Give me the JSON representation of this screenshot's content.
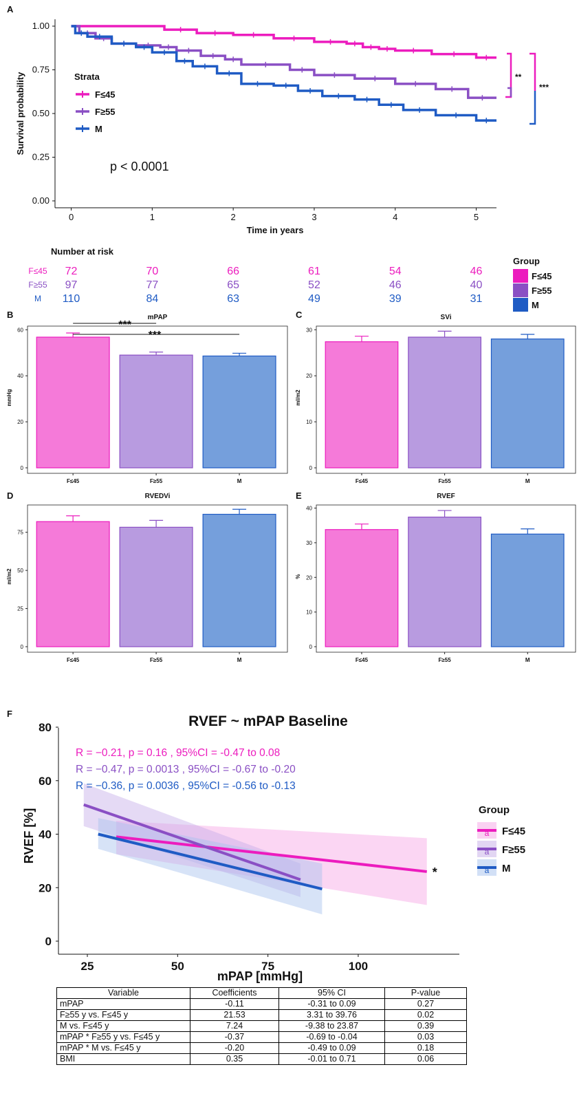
{
  "colors": {
    "f45": "#ec1cbe",
    "f55": "#8a4fc4",
    "m": "#1f5bc4",
    "f45_fill": "#f57ad9",
    "f55_fill": "#b89be0",
    "m_fill": "#759fdc",
    "f45_ci": "#f6a4e5",
    "f55_ci": "#c6aee8",
    "m_ci": "#a6c2ee"
  },
  "panel_letters": {
    "a": "A",
    "b": "B",
    "c": "C",
    "d": "D",
    "e": "E",
    "f": "F"
  },
  "chart_data": [
    {
      "id": "A",
      "type": "line",
      "subtype": "kaplan-meier step",
      "xlabel": "Time in years",
      "ylabel": "Survival probability",
      "xlim": [
        -0.2,
        5.25
      ],
      "ylim": [
        0,
        1.0
      ],
      "xticks": [
        "0",
        "1",
        "2",
        "3",
        "4",
        "5"
      ],
      "yticks": [
        "0.00",
        "0.25",
        "0.50",
        "0.75",
        "1.00"
      ],
      "legend_title": "Strata",
      "legend_position": "left-center",
      "pvalue_text": "p < 0.0001",
      "significance": [
        "**",
        "***"
      ],
      "series": [
        {
          "name": "F≤45",
          "color_key": "f45",
          "x": [
            0,
            1.15,
            1.55,
            2.0,
            2.5,
            3.0,
            3.4,
            3.6,
            3.8,
            4.0,
            4.45,
            5.0,
            5.25
          ],
          "y": [
            1.0,
            0.98,
            0.96,
            0.95,
            0.93,
            0.91,
            0.9,
            0.88,
            0.87,
            0.86,
            0.84,
            0.82,
            0.82
          ]
        },
        {
          "name": "F≥55",
          "color_key": "f55",
          "x": [
            0,
            0.1,
            0.3,
            0.5,
            0.8,
            1.1,
            1.3,
            1.6,
            1.9,
            2.1,
            2.7,
            3.0,
            3.5,
            4.0,
            4.5,
            4.9,
            5.25
          ],
          "y": [
            1.0,
            0.96,
            0.93,
            0.9,
            0.89,
            0.88,
            0.86,
            0.83,
            0.81,
            0.78,
            0.75,
            0.72,
            0.7,
            0.67,
            0.64,
            0.59,
            0.59
          ]
        },
        {
          "name": "M",
          "color_key": "m",
          "x": [
            0,
            0.05,
            0.2,
            0.5,
            0.8,
            1.0,
            1.3,
            1.5,
            1.8,
            2.1,
            2.5,
            2.8,
            3.1,
            3.5,
            3.8,
            4.1,
            4.5,
            5.0,
            5.25
          ],
          "y": [
            1.0,
            0.96,
            0.94,
            0.9,
            0.88,
            0.85,
            0.8,
            0.77,
            0.73,
            0.67,
            0.66,
            0.63,
            0.6,
            0.58,
            0.55,
            0.52,
            0.49,
            0.46,
            0.46
          ]
        }
      ],
      "risk_table": {
        "title": "Number at risk",
        "rows": [
          {
            "label": "F≤45",
            "color_key": "f45",
            "values": [
              72,
              70,
              66,
              61,
              54,
              46
            ]
          },
          {
            "label": "F≥55",
            "color_key": "f55",
            "values": [
              97,
              77,
              65,
              52,
              46,
              40
            ]
          },
          {
            "label": "M",
            "color_key": "m",
            "values": [
              110,
              84,
              63,
              49,
              39,
              31
            ]
          }
        ]
      },
      "group_legend": {
        "title": "Group",
        "items": [
          "F≤45",
          "F≥55",
          "M"
        ]
      }
    },
    {
      "id": "B",
      "type": "bar",
      "title": "mPAP",
      "ylabel": "mmHg",
      "categories": [
        "F≤45",
        "F≥55",
        "M"
      ],
      "values": [
        56.8,
        49.0,
        48.6
      ],
      "errors": [
        1.8,
        1.3,
        1.2
      ],
      "ylim": [
        0,
        61
      ],
      "yticks": [
        0,
        20,
        40,
        60
      ],
      "significance": [
        "***",
        "***"
      ]
    },
    {
      "id": "C",
      "type": "bar",
      "title": "SVi",
      "ylabel": "ml/m2",
      "categories": [
        "F≤45",
        "F≥55",
        "M"
      ],
      "values": [
        27.4,
        28.4,
        28.0
      ],
      "errors": [
        1.2,
        1.3,
        1.0
      ],
      "ylim": [
        0,
        30.5
      ],
      "yticks": [
        0,
        10,
        20,
        30
      ]
    },
    {
      "id": "D",
      "type": "bar",
      "title": "RVEDVi",
      "ylabel": "ml/m2",
      "categories": [
        "F≤45",
        "F≥55",
        "M"
      ],
      "values": [
        82.0,
        78.3,
        86.8
      ],
      "errors": [
        3.8,
        4.5,
        3.3
      ],
      "ylim": [
        0,
        92
      ],
      "yticks": [
        0,
        25,
        50,
        75
      ]
    },
    {
      "id": "E",
      "type": "bar",
      "title": "RVEF",
      "ylabel": "%",
      "categories": [
        "F≤45",
        "F≥55",
        "M"
      ],
      "values": [
        33.8,
        37.4,
        32.5
      ],
      "errors": [
        1.6,
        1.9,
        1.5
      ],
      "ylim": [
        0,
        40.5
      ],
      "yticks": [
        0,
        10,
        20,
        30,
        40
      ]
    },
    {
      "id": "F",
      "type": "line",
      "subtype": "regression with 95% CI band",
      "title": "RVEF ~ mPAP Baseline",
      "xlabel": "mPAP [mmHg]",
      "ylabel": "RVEF [%]",
      "xlim": [
        17,
        128
      ],
      "ylim": [
        -3,
        83
      ],
      "xticks": [
        25,
        50,
        75,
        100
      ],
      "yticks": [
        0,
        20,
        40,
        60,
        80
      ],
      "legend_title": "Group",
      "legend_position": "right",
      "annotations": [
        {
          "text": "R = −0.21, p = 0.16 , 95%CI = -0.47 to 0.08",
          "color_key": "f45"
        },
        {
          "text": "R = −0.47, p = 0.0013 , 95%CI = -0.67 to -0.20",
          "color_key": "f55"
        },
        {
          "text": "R = −0.36, p = 0.0036 , 95%CI = -0.56 to -0.13",
          "color_key": "m"
        }
      ],
      "marker_text": "*",
      "series": [
        {
          "name": "F≤45",
          "color_key": "f45",
          "x": [
            33,
            119
          ],
          "y": [
            39,
            26
          ],
          "ci_upper": [
            45,
            38.5
          ],
          "ci_lower": [
            32.5,
            13.5
          ]
        },
        {
          "name": "F≥55",
          "color_key": "f55",
          "x": [
            24,
            84
          ],
          "y": [
            51,
            23
          ],
          "ci_upper": [
            59,
            29
          ],
          "ci_lower": [
            43,
            16.5
          ]
        },
        {
          "name": "M",
          "color_key": "m",
          "x": [
            28,
            90
          ],
          "y": [
            40,
            19.5
          ],
          "ci_upper": [
            46,
            29
          ],
          "ci_lower": [
            34.5,
            10
          ]
        }
      ]
    }
  ],
  "table": {
    "headers": [
      "Variable",
      "Coefficients",
      "95% CI",
      "P-value"
    ],
    "rows": [
      [
        "mPAP",
        "-0.11",
        "-0.31 to 0.09",
        "0.27"
      ],
      [
        "F≥55 y vs. F≤45 y",
        "21.53",
        "3.31 to 39.76",
        "0.02"
      ],
      [
        "M vs. F≤45 y",
        "7.24",
        "-9.38 to 23.87",
        "0.39"
      ],
      [
        "mPAP * F≥55 y vs. F≤45 y",
        "-0.37",
        "-0.69 to -0.04",
        "0.03"
      ],
      [
        "mPAP * M vs. F≤45 y",
        "-0.20",
        "-0.49 to 0.09",
        "0.18"
      ],
      [
        "BMI",
        "0.35",
        "-0.01 to 0.71",
        "0.06"
      ]
    ]
  }
}
